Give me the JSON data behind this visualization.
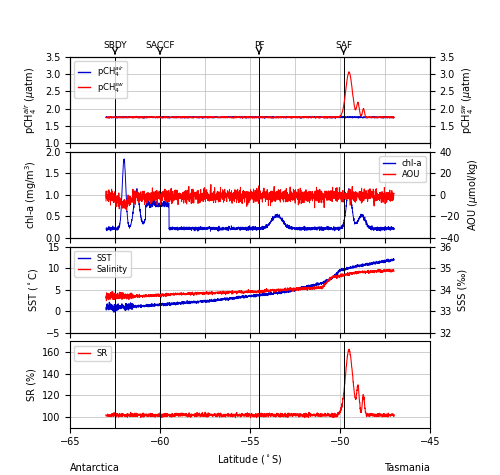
{
  "xlim": [
    -65,
    -45
  ],
  "xticks": [
    -65,
    -60,
    -55,
    -50,
    -45
  ],
  "front_labels": [
    "SBDY",
    "SACCF",
    "PF",
    "SAF"
  ],
  "front_lats": [
    -62.5,
    -60.0,
    -54.5,
    -49.8
  ],
  "panel1": {
    "ylim_left": [
      1.0,
      3.5
    ],
    "yticks_left": [
      1.0,
      1.5,
      2.0,
      2.5,
      3.0,
      3.5
    ],
    "ylim_right": [
      1.0,
      3.5
    ],
    "yticks_right": [
      1.5,
      2.0,
      2.5,
      3.0,
      3.5
    ],
    "ylabel_left": "pCH$_4^{air}$ ($\\mu$atm)",
    "ylabel_right": "pCH$_4^{sw}$ ($\\mu$atm)"
  },
  "panel2": {
    "ylim_left": [
      0.0,
      2.0
    ],
    "yticks_left": [
      0.0,
      0.5,
      1.0,
      1.5,
      2.0
    ],
    "ylim_right": [
      -40,
      40
    ],
    "yticks_right": [
      -40,
      -20,
      0,
      20,
      40
    ],
    "ylabel_left": "chl-a (mg/m$^3$)",
    "ylabel_right": "AOU ($\\mu$mol/kg)"
  },
  "panel3": {
    "ylim_left": [
      -5,
      15
    ],
    "yticks_left": [
      -5,
      0,
      5,
      10,
      15
    ],
    "ylim_right": [
      32,
      36
    ],
    "yticks_right": [
      32,
      33,
      34,
      35,
      36
    ],
    "ylabel_left": "SST ($^\\circ$C)",
    "ylabel_right": "SSS (‰)"
  },
  "panel4": {
    "ylim_left": [
      90,
      170
    ],
    "yticks_left": [
      100,
      120,
      140,
      160
    ],
    "ylabel_left": "SR (%)"
  },
  "colors": {
    "blue": "#0000CD",
    "red": "#FF0000",
    "grid": "#BBBBBB"
  }
}
